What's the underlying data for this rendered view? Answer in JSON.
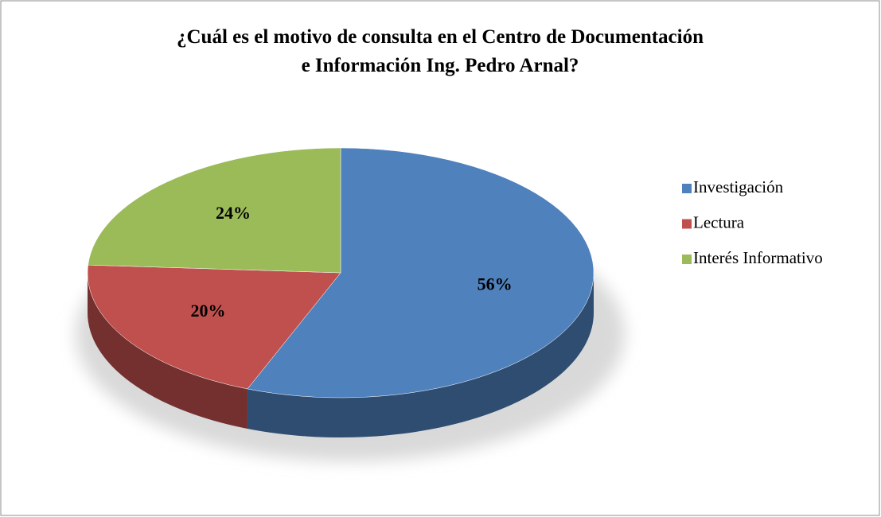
{
  "chart_data": {
    "type": "pie",
    "title": [
      "¿Cuál es el motivo de consulta en el Centro de Documentación",
      "e Información Ing. Pedro Arnal?"
    ],
    "categories": [
      "Investigación",
      "Lectura",
      "Interés Informativo"
    ],
    "values": [
      56,
      20,
      24
    ],
    "value_labels": [
      "56%",
      "20%",
      "24%"
    ],
    "colors": [
      "#4f81bd",
      "#c0504d",
      "#9bbb59"
    ],
    "legend": "right"
  }
}
